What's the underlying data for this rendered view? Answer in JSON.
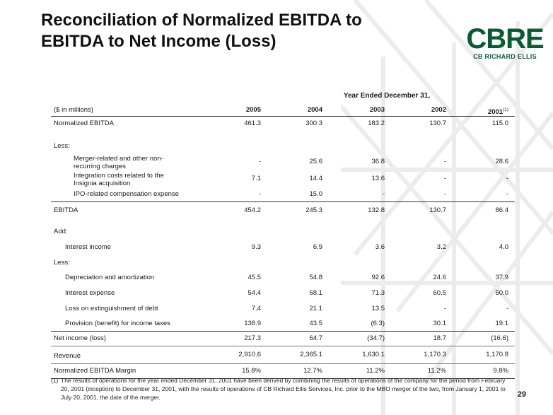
{
  "title_line1": "Reconciliation of Normalized EBITDA to",
  "title_line2": "EBITDA to Net Income (Loss)",
  "logo": {
    "main": "CBRE",
    "sub": "CB RICHARD ELLIS"
  },
  "table": {
    "period_header": "Year Ended December 31,",
    "units_label": "($ in millions)",
    "years": [
      "2005",
      "2004",
      "2003",
      "2002",
      "2001"
    ],
    "footnote_ref": "(1)",
    "rows": {
      "normalized_ebitda": {
        "label": "Normalized EBITDA",
        "values": [
          "461.3",
          "300.3",
          "183.2",
          "130.7",
          "115.0"
        ]
      },
      "less1": {
        "label": "Less:"
      },
      "merger": {
        "label1": "Merger-related and other non-",
        "label2": "recurring charges",
        "values": [
          "-",
          "25.6",
          "36.8",
          "-",
          "28.6"
        ]
      },
      "integration": {
        "label1": "Integration costs related to the",
        "label2": "Insignia acquisition",
        "values": [
          "7.1",
          "14.4",
          "13.6",
          "-",
          "-"
        ]
      },
      "ipo": {
        "label": "IPO-related compensation expense",
        "values": [
          "-",
          "15.0",
          "-",
          "-",
          "-"
        ]
      },
      "ebitda": {
        "label": "EBITDA",
        "values": [
          "454.2",
          "245.3",
          "132.8",
          "130.7",
          "86.4"
        ]
      },
      "add": {
        "label": "Add:"
      },
      "interest_income": {
        "label": "Interest income",
        "values": [
          "9.3",
          "6.9",
          "3.6",
          "3.2",
          "4.0"
        ]
      },
      "less2": {
        "label": "Less:"
      },
      "depreciation": {
        "label": "Depreciation and amortization",
        "values": [
          "45.5",
          "54.8",
          "92.6",
          "24.6",
          "37.9"
        ]
      },
      "interest_expense": {
        "label": "Interest expense",
        "values": [
          "54.4",
          "68.1",
          "71.3",
          "60.5",
          "50.0"
        ]
      },
      "extinguishment": {
        "label": "Loss on extinguishment of debt",
        "values": [
          "7.4",
          "21.1",
          "13.5",
          "-",
          "-"
        ]
      },
      "taxes": {
        "label": "Provision (benefit) for income taxes",
        "values": [
          "138.9",
          "43.5",
          "(6.3)",
          "30.1",
          "19.1"
        ]
      },
      "net_income": {
        "label": "Net income (loss)",
        "values": [
          "217.3",
          "64.7",
          "(34.7)",
          "18.7",
          "(16.6)"
        ]
      },
      "revenue": {
        "label": "Revenue",
        "values": [
          "2,910.6",
          "2,365.1",
          "1,630.1",
          "1,170.3",
          "1,170.8"
        ]
      },
      "margin": {
        "label": "Normalized EBITDA Margin",
        "values": [
          "15.8%",
          "12.7%",
          "11.2%",
          "11.2%",
          "9.8%"
        ]
      }
    }
  },
  "footnote": {
    "mark": "(1)",
    "text": "The results of operations for the year ended December 31, 2001 have been derived by combining the results of operations of the company for the period from February 20, 2001 (inception) to December 31, 2001, with the results of operations of CB Richard Ellis Services, Inc. prior to the MBO merger of the two, from January 1, 2001 to July 20, 2001, the date of the merger."
  },
  "page_number": "29",
  "colors": {
    "brand_green": "#0b5a32",
    "pattern": "#e4e4e4"
  }
}
